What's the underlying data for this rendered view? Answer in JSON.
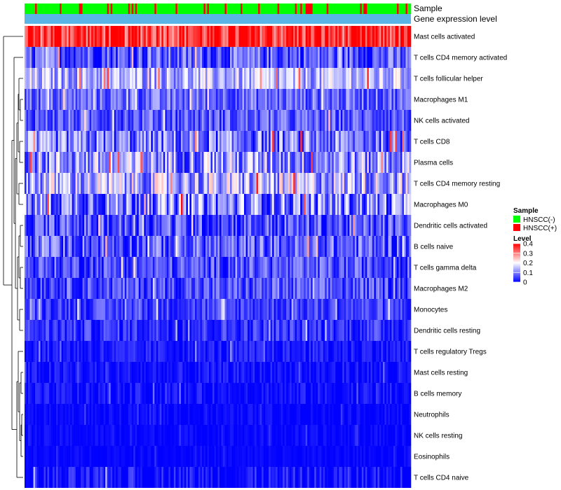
{
  "colors": {
    "low": "#0000FF",
    "mid": "#FFFFFF",
    "high": "#FF0000",
    "sample_negative": "#00FF00",
    "sample_positive": "#FF0000",
    "gene_expression": "#5AB4E5",
    "dendrogram": "#000000"
  },
  "chart_data": {
    "type": "heatmap",
    "title": "",
    "n_samples": 220,
    "annotation_tracks": [
      {
        "label": "Sample",
        "categories": [
          "HNSCC(-)",
          "HNSCC(+)"
        ],
        "approx_positive_fraction": 0.18
      },
      {
        "label": "Gene expression level"
      }
    ],
    "rows": [
      {
        "label": "Mast cells activated",
        "mean_level": 0.36,
        "spread": 0.06
      },
      {
        "label": "T cells CD4 memory activated",
        "mean_level": 0.07,
        "spread": 0.05
      },
      {
        "label": "T cells follicular helper",
        "mean_level": 0.14,
        "spread": 0.05
      },
      {
        "label": "Macrophages M1",
        "mean_level": 0.08,
        "spread": 0.04
      },
      {
        "label": "NK cells activated",
        "mean_level": 0.07,
        "spread": 0.04
      },
      {
        "label": "T cells CD8",
        "mean_level": 0.09,
        "spread": 0.06
      },
      {
        "label": "Plasma cells",
        "mean_level": 0.12,
        "spread": 0.07
      },
      {
        "label": "T cells CD4 memory resting",
        "mean_level": 0.14,
        "spread": 0.07
      },
      {
        "label": "Macrophages M0",
        "mean_level": 0.1,
        "spread": 0.07
      },
      {
        "label": "Dendritic cells activated",
        "mean_level": 0.06,
        "spread": 0.05
      },
      {
        "label": "B cells naive",
        "mean_level": 0.07,
        "spread": 0.05
      },
      {
        "label": "T cells gamma delta",
        "mean_level": 0.06,
        "spread": 0.04
      },
      {
        "label": "Macrophages M2",
        "mean_level": 0.06,
        "spread": 0.04
      },
      {
        "label": "Monocytes",
        "mean_level": 0.05,
        "spread": 0.03
      },
      {
        "label": "Dendritic cells resting",
        "mean_level": 0.04,
        "spread": 0.03
      },
      {
        "label": "T cells regulatory  Tregs",
        "mean_level": 0.02,
        "spread": 0.02
      },
      {
        "label": "Mast cells resting",
        "mean_level": 0.01,
        "spread": 0.02
      },
      {
        "label": "B cells memory",
        "mean_level": 0.01,
        "spread": 0.02
      },
      {
        "label": "Neutrophils",
        "mean_level": 0.005,
        "spread": 0.01
      },
      {
        "label": "NK cells resting",
        "mean_level": 0.005,
        "spread": 0.01
      },
      {
        "label": "Eosinophils",
        "mean_level": 0.003,
        "spread": 0.008
      },
      {
        "label": "T cells CD4 naive",
        "mean_level": 0.01,
        "spread": 0.03
      }
    ],
    "legend": {
      "sample": {
        "title": "Sample",
        "entries": [
          "HNSCC(-)",
          "HNSCC(+)"
        ]
      },
      "level": {
        "title": "Level",
        "range": [
          0,
          0.4
        ],
        "ticks": [
          "0",
          "0.1",
          "0.2",
          "0.3",
          "0.4"
        ]
      },
      "placement": "right"
    },
    "dendrogram": "rows",
    "row_label_placement": "right"
  }
}
